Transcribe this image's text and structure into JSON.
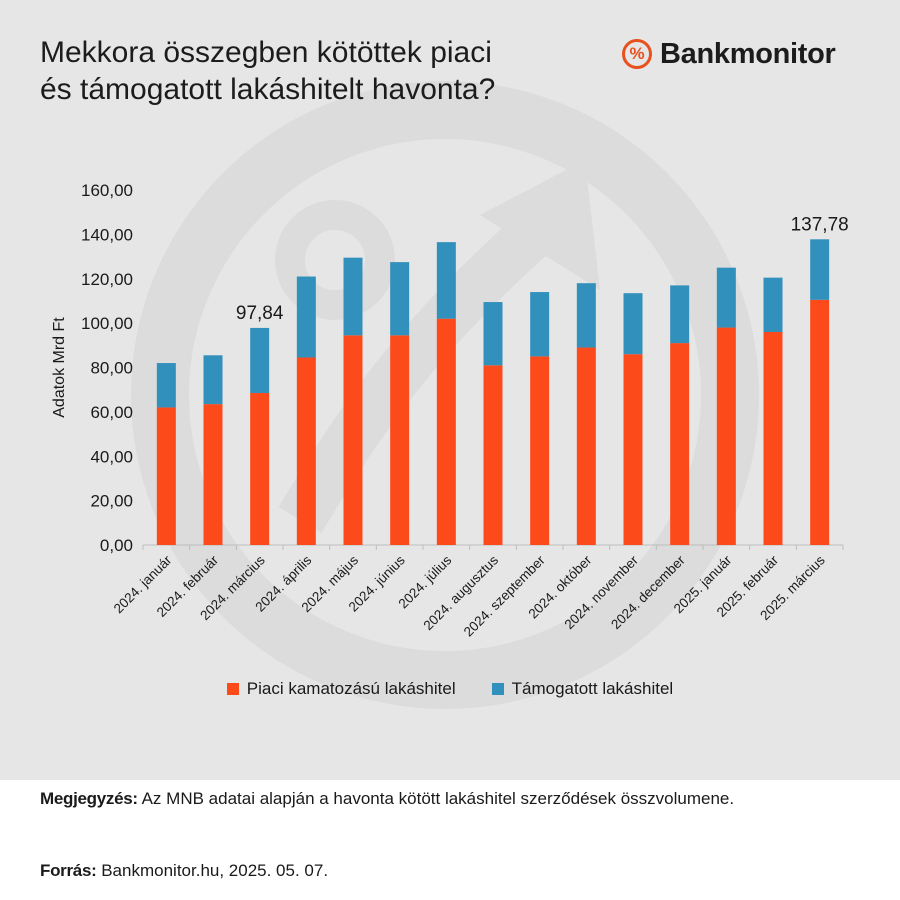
{
  "title_line1": "Mekkora összegben kötöttek piaci",
  "title_line2": "és támogatott lakáshitelt havonta?",
  "brand": {
    "icon": "%",
    "name": "Bankmonitor"
  },
  "colors": {
    "market": "#fc4a1a",
    "subsidized": "#3290bc",
    "background": "#e6e6e6",
    "brand_accent": "#e8501e"
  },
  "chart_data": {
    "type": "bar",
    "stacked": true,
    "ylabel": "Adatok Mrd Ft",
    "xlabel": "",
    "ylim": [
      0,
      160
    ],
    "yticks": [
      "0,00",
      "20,00",
      "40,00",
      "60,00",
      "80,00",
      "100,00",
      "120,00",
      "140,00",
      "160,00"
    ],
    "categories": [
      "2024. január",
      "2024. február",
      "2024. március",
      "2024. április",
      "2024. május",
      "2024. június",
      "2024. július",
      "2024. augusztus",
      "2024. szeptember",
      "2024. október",
      "2024. november",
      "2024. december",
      "2025. január",
      "2025. február",
      "2025. március"
    ],
    "series": [
      {
        "name": "Piaci kamatozású lakáshitel",
        "values": [
          62,
          63.5,
          68.5,
          84.5,
          94.5,
          94.5,
          102,
          81,
          85,
          89,
          86,
          91,
          98,
          96,
          110.5
        ]
      },
      {
        "name": "Támogatott lakáshitel",
        "values": [
          20,
          22,
          29.34,
          36.5,
          35,
          33,
          34.5,
          28.5,
          29,
          29,
          27.5,
          26,
          27,
          24.5,
          27.28
        ]
      }
    ],
    "data_labels": [
      {
        "category": "2024. március",
        "text": "97,84"
      },
      {
        "category": "2025. március",
        "text": "137,78"
      }
    ],
    "legend_position": "bottom"
  },
  "note": {
    "label": "Megjegyzés:",
    "text": "Az MNB adatai alapján a havonta kötött lakáshitel szerződések összvolumene."
  },
  "source": {
    "label": "Forrás:",
    "text": "Bankmonitor.hu, 2025. 05. 07."
  }
}
